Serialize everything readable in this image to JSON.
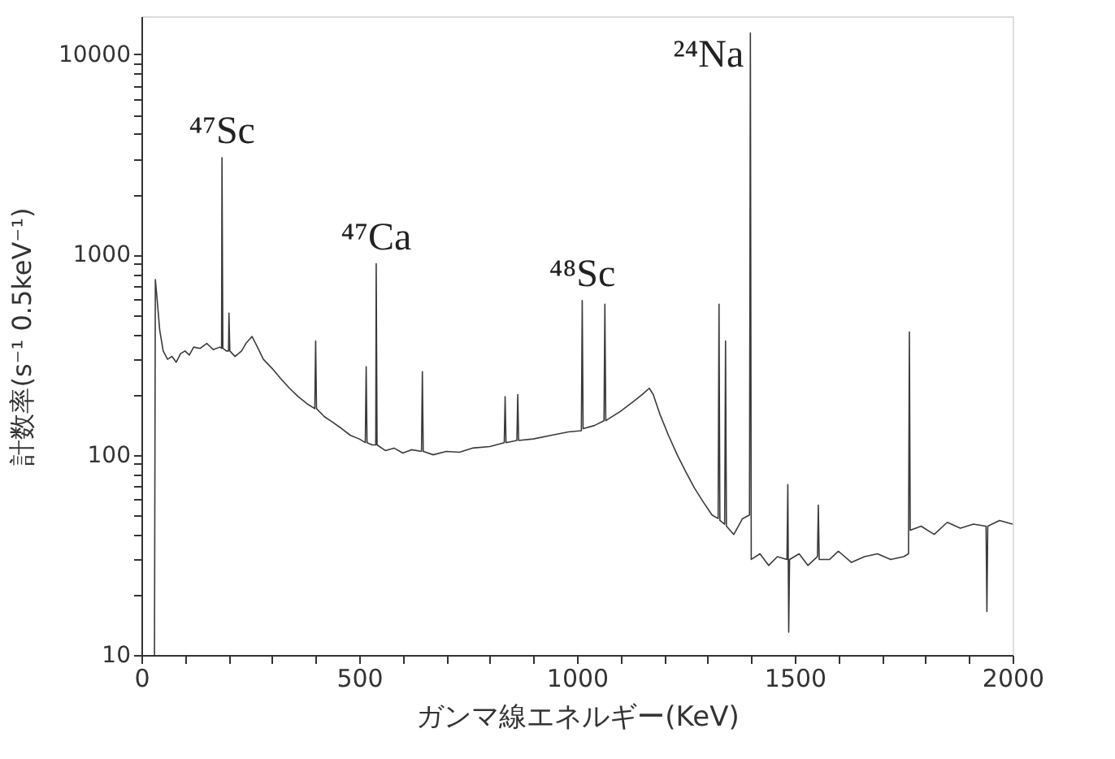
{
  "chart_data": {
    "type": "line",
    "xlabel": "ガンマ線エネルギー(KeV)",
    "ylabel": "計数率(s⁻¹ 0.5keV⁻¹)",
    "log": "y",
    "grid": false,
    "legend": false,
    "marker": "none",
    "line_style": "solid",
    "xlim": [
      0,
      2000
    ],
    "ylim": [
      10,
      15500
    ],
    "xticks": [
      0,
      {
        "value": 100,
        "label": null
      },
      {
        "value": 200,
        "label": null
      },
      {
        "value": 300,
        "label": null
      },
      {
        "value": 400,
        "label": null
      },
      500,
      {
        "value": 600,
        "label": null
      },
      {
        "value": 700,
        "label": null
      },
      {
        "value": 800,
        "label": null
      },
      {
        "value": 900,
        "label": null
      },
      1000,
      {
        "value": 1100,
        "label": null
      },
      {
        "value": 1200,
        "label": null
      },
      {
        "value": 1300,
        "label": null
      },
      {
        "value": 1400,
        "label": null
      },
      1500,
      {
        "value": 1600,
        "label": null
      },
      {
        "value": 1700,
        "label": null
      },
      {
        "value": 1800,
        "label": null
      },
      {
        "value": 1900,
        "label": null
      },
      2000
    ],
    "yticks": [
      10,
      {
        "value": 20,
        "label": null
      },
      {
        "value": 30,
        "label": null
      },
      {
        "value": 40,
        "label": null
      },
      {
        "value": 50,
        "label": null
      },
      {
        "value": 60,
        "label": null
      },
      {
        "value": 70,
        "label": null
      },
      {
        "value": 80,
        "label": null
      },
      {
        "value": 90,
        "label": null
      },
      100,
      {
        "value": 200,
        "label": null
      },
      {
        "value": 300,
        "label": null
      },
      {
        "value": 400,
        "label": null
      },
      {
        "value": 500,
        "label": null
      },
      {
        "value": 600,
        "label": null
      },
      {
        "value": 700,
        "label": null
      },
      {
        "value": 800,
        "label": null
      },
      {
        "value": 900,
        "label": null
      },
      1000,
      {
        "value": 2000,
        "label": null
      },
      {
        "value": 3000,
        "label": null
      },
      {
        "value": 4000,
        "label": null
      },
      {
        "value": 5000,
        "label": null
      },
      {
        "value": 6000,
        "label": null
      },
      {
        "value": 7000,
        "label": null
      },
      {
        "value": 8000,
        "label": null
      },
      {
        "value": 9000,
        "label": null
      },
      10000
    ],
    "annotations": [
      {
        "text": "⁴⁷Sc",
        "x": 185,
        "y": 3050
      },
      {
        "text": "⁴⁷Ca",
        "x": 539,
        "y": 900
      },
      {
        "text": "⁴⁸Sc",
        "x": 1012,
        "y": 590
      },
      {
        "text": "²⁴Na",
        "x": 1398,
        "y": 12800
      }
    ],
    "series": [
      {
        "color": "#3a3a3a",
        "x": [
          30,
          32,
          36,
          42,
          50,
          60,
          70,
          80,
          90,
          100,
          110,
          120,
          135,
          150,
          165,
          180,
          184,
          185,
          187,
          195,
          200,
          201,
          203,
          215,
          230,
          240,
          254,
          265,
          280,
          300,
          320,
          340,
          360,
          380,
          398,
          400,
          402,
          420,
          440,
          460,
          480,
          500,
          514,
          516,
          518,
          530,
          538,
          539,
          541,
          560,
          580,
          600,
          620,
          643,
          645,
          647,
          670,
          700,
          730,
          760,
          800,
          833,
          835,
          837,
          862,
          864,
          866,
          900,
          940,
          980,
          1010,
          1012,
          1014,
          1040,
          1062,
          1064,
          1066,
          1100,
          1130,
          1150,
          1166,
          1175,
          1190,
          1210,
          1230,
          1250,
          1270,
          1290,
          1310,
          1324,
          1326,
          1328,
          1339,
          1341,
          1343,
          1360,
          1380,
          1396,
          1398,
          1400,
          1420,
          1440,
          1460,
          1482,
          1484,
          1486,
          1488,
          1510,
          1530,
          1552,
          1554,
          1556,
          1580,
          1600,
          1630,
          1660,
          1690,
          1720,
          1750,
          1761,
          1763,
          1765,
          1790,
          1820,
          1850,
          1880,
          1910,
          1939,
          1941,
          1943,
          1970,
          2000
        ],
        "values": [
          10,
          750,
          600,
          420,
          330,
          300,
          310,
          290,
          320,
          330,
          315,
          345,
          340,
          360,
          335,
          345,
          340,
          3050,
          340,
          330,
          330,
          510,
          330,
          310,
          330,
          360,
          390,
          350,
          300,
          270,
          240,
          215,
          195,
          180,
          170,
          370,
          170,
          155,
          145,
          135,
          125,
          120,
          115,
          275,
          115,
          112,
          112,
          900,
          112,
          105,
          108,
          102,
          106,
          104,
          260,
          104,
          100,
          104,
          103,
          108,
          110,
          115,
          195,
          115,
          118,
          200,
          118,
          120,
          125,
          130,
          132,
          590,
          135,
          140,
          148,
          565,
          148,
          165,
          185,
          200,
          215,
          200,
          160,
          125,
          100,
          82,
          68,
          58,
          50,
          48,
          565,
          47,
          45,
          370,
          44,
          40,
          48,
          50,
          12800,
          30,
          32,
          28,
          31,
          30,
          71,
          13,
          30,
          32,
          28,
          31,
          56,
          30,
          30,
          33,
          29,
          31,
          32,
          30,
          31,
          32,
          410,
          42,
          44,
          40,
          46,
          43,
          45,
          44,
          16.5,
          44,
          47,
          45
        ]
      }
    ]
  }
}
